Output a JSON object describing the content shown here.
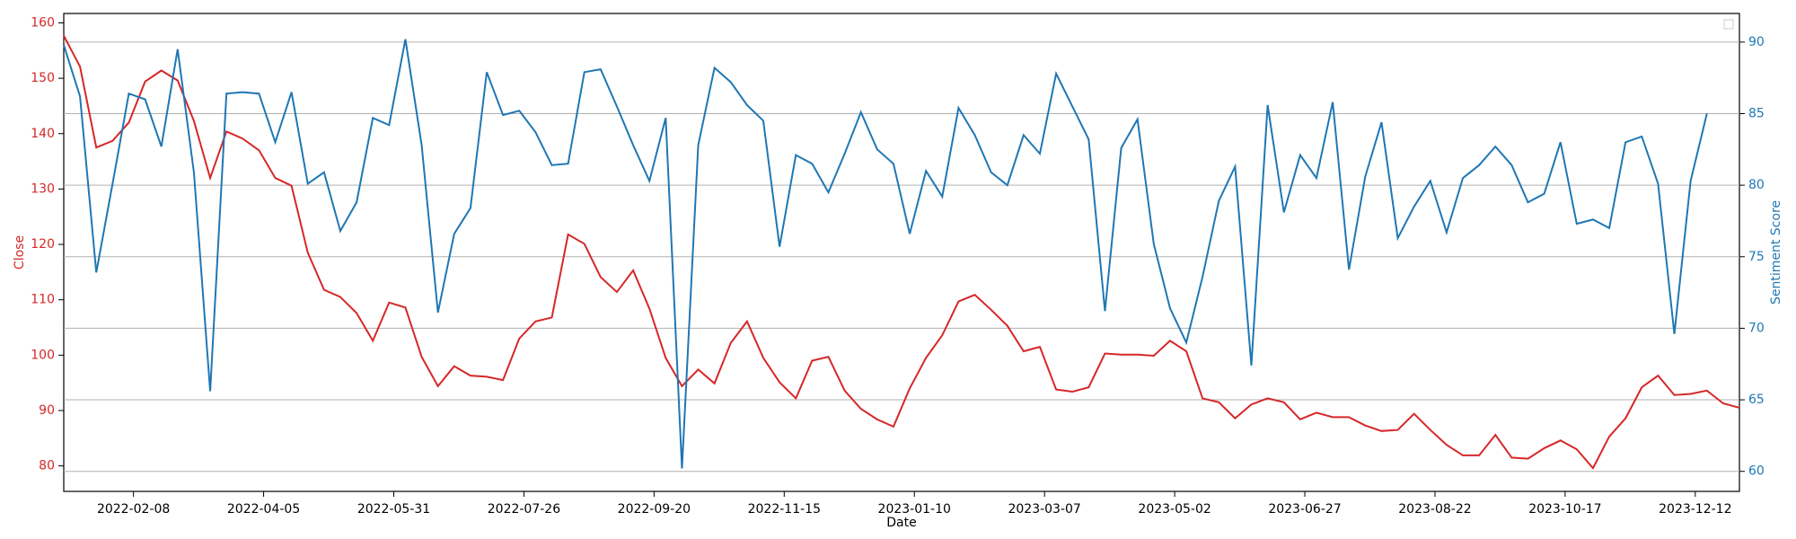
{
  "chart_data": {
    "type": "line",
    "x_label": "Date",
    "y_label": "Close",
    "y2_label": "Sentiment Score",
    "x": [
      "2022-01-09",
      "2022-01-16",
      "2022-01-23",
      "2022-01-30",
      "2022-02-06",
      "2022-02-13",
      "2022-02-20",
      "2022-02-27",
      "2022-03-06",
      "2022-03-13",
      "2022-03-20",
      "2022-03-27",
      "2022-04-03",
      "2022-04-10",
      "2022-04-17",
      "2022-04-24",
      "2022-05-01",
      "2022-05-08",
      "2022-05-15",
      "2022-05-22",
      "2022-05-29",
      "2022-06-05",
      "2022-06-12",
      "2022-06-19",
      "2022-06-26",
      "2022-07-03",
      "2022-07-10",
      "2022-07-17",
      "2022-07-24",
      "2022-07-31",
      "2022-08-07",
      "2022-08-14",
      "2022-08-21",
      "2022-08-28",
      "2022-09-04",
      "2022-09-11",
      "2022-09-18",
      "2022-09-25",
      "2022-10-02",
      "2022-10-09",
      "2022-10-16",
      "2022-10-23",
      "2022-10-30",
      "2022-11-06",
      "2022-11-13",
      "2022-11-20",
      "2022-11-27",
      "2022-12-04",
      "2022-12-11",
      "2022-12-18",
      "2022-12-25",
      "2023-01-01",
      "2023-01-08",
      "2023-01-15",
      "2023-01-22",
      "2023-01-29",
      "2023-02-05",
      "2023-02-12",
      "2023-02-19",
      "2023-02-26",
      "2023-03-05",
      "2023-03-12",
      "2023-03-19",
      "2023-03-26",
      "2023-04-02",
      "2023-04-09",
      "2023-04-16",
      "2023-04-23",
      "2023-04-30",
      "2023-05-07",
      "2023-05-14",
      "2023-05-21",
      "2023-05-28",
      "2023-06-04",
      "2023-06-11",
      "2023-06-18",
      "2023-06-25",
      "2023-07-02",
      "2023-07-09",
      "2023-07-16",
      "2023-07-23",
      "2023-07-30",
      "2023-08-06",
      "2023-08-13",
      "2023-08-20",
      "2023-08-27",
      "2023-09-03",
      "2023-09-10",
      "2023-09-17",
      "2023-09-24",
      "2023-10-01",
      "2023-10-08",
      "2023-10-15",
      "2023-10-22",
      "2023-10-29",
      "2023-11-05",
      "2023-11-12",
      "2023-11-19",
      "2023-11-26",
      "2023-12-03",
      "2023-12-10",
      "2023-12-17",
      "2023-12-24",
      "2023-12-31"
    ],
    "xlim": [
      "2022-01-09",
      "2023-12-31"
    ],
    "xticks": [
      "2022-02-08",
      "2022-04-05",
      "2022-05-31",
      "2022-07-26",
      "2022-09-20",
      "2022-11-15",
      "2023-01-10",
      "2023-03-07",
      "2023-05-02",
      "2023-06-27",
      "2023-08-22",
      "2023-10-17",
      "2023-12-12"
    ],
    "ylim": [
      75.4,
      161.7
    ],
    "yticks": [
      80,
      90,
      100,
      110,
      120,
      130,
      140,
      150,
      160
    ],
    "y2lim": [
      58.6,
      92.0
    ],
    "y2ticks": [
      60,
      65,
      70,
      75,
      80,
      85,
      90
    ],
    "grid": "y2",
    "y_color": "#d62728",
    "y2_color": "#1f77b4",
    "series": [
      {
        "name": "Close",
        "color": "#d62728",
        "values": [
          157.7,
          152.1,
          137.5,
          138.7,
          142.0,
          149.4,
          151.4,
          149.6,
          142.3,
          132.0,
          140.4,
          139.1,
          137.0,
          132.0,
          130.6,
          118.5,
          111.8,
          110.5,
          107.6,
          102.6,
          109.5,
          108.6,
          99.7,
          94.4,
          98.0,
          96.3,
          96.1,
          95.5,
          103.0,
          106.1,
          106.8,
          121.8,
          120.1,
          114.1,
          111.4,
          115.3,
          108.4,
          99.5,
          94.4,
          97.4,
          94.9,
          102.2,
          106.1,
          99.5,
          95.1,
          92.2,
          99.0,
          99.7,
          93.6,
          90.3,
          88.4,
          87.1,
          94.0,
          99.5,
          103.6,
          109.7,
          110.9,
          108.2,
          105.3,
          100.7,
          101.5,
          93.8,
          93.4,
          94.2,
          100.3,
          100.1,
          100.1,
          99.9,
          102.6,
          100.7,
          92.2,
          91.5,
          88.6,
          91.1,
          92.2,
          91.5,
          88.4,
          89.6,
          88.8,
          88.8,
          87.3,
          86.3,
          86.5,
          89.4,
          86.5,
          83.8,
          81.9,
          81.9,
          85.6,
          81.5,
          81.3,
          83.2,
          84.6,
          83.0,
          79.6,
          85.3,
          88.6,
          94.2,
          96.3,
          92.8,
          93.0,
          93.6,
          91.3,
          90.5
        ]
      },
      {
        "name": "Sentiment Score",
        "color": "#1f77b4",
        "axis": "y2",
        "values": [
          89.8,
          86.2,
          73.9,
          80.1,
          86.4,
          86.0,
          82.7,
          89.5,
          80.9,
          65.6,
          86.4,
          86.5,
          86.4,
          83.0,
          86.5,
          80.1,
          80.9,
          76.8,
          78.8,
          84.7,
          84.2,
          90.2,
          82.8,
          71.1,
          76.6,
          78.4,
          87.9,
          84.9,
          85.2,
          83.7,
          81.4,
          81.5,
          87.9,
          88.1,
          85.5,
          82.8,
          80.3,
          84.7,
          60.2,
          82.8,
          88.2,
          87.2,
          85.6,
          84.5,
          75.7,
          82.1,
          81.5,
          79.5,
          82.2,
          85.1,
          82.5,
          81.5,
          76.6,
          81.0,
          79.2,
          85.4,
          83.5,
          80.9,
          80.0,
          83.5,
          82.2,
          87.8,
          85.5,
          83.2,
          71.2,
          82.6,
          84.6,
          75.9,
          71.4,
          69.0,
          73.6,
          78.9,
          81.3,
          67.4,
          85.6,
          78.1,
          82.1,
          80.5,
          85.8,
          74.1,
          80.6,
          84.4,
          76.3,
          78.5,
          80.3,
          76.7,
          80.5,
          81.4,
          82.7,
          81.4,
          78.8,
          79.4,
          83.0,
          77.3,
          77.6,
          77.0,
          83.0,
          83.4,
          80.1,
          69.6,
          80.3,
          85.0,
          null,
          null
        ]
      }
    ]
  }
}
